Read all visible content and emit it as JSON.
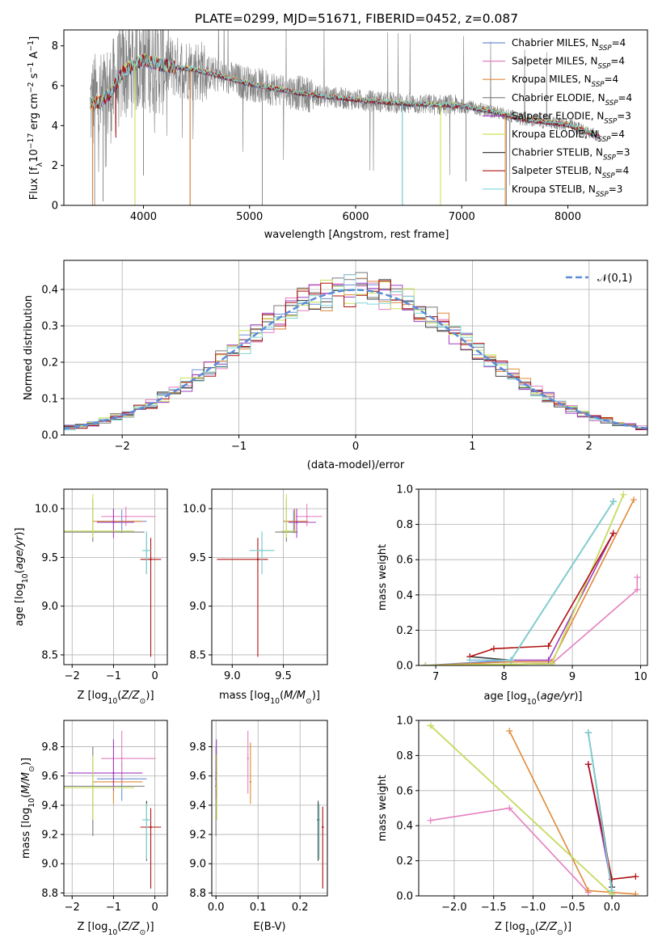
{
  "colors": {
    "chabrier_miles": "#6d8fd6",
    "salpeter_miles": "#e57fbf",
    "kroupa_miles": "#e08a3a",
    "chabrier_elodie": "#7a7a7a",
    "salpeter_elodie": "#9f3fbf",
    "kroupa_elodie": "#c9e35a",
    "chabrier_stelib": "#404040",
    "salpeter_stelib": "#b01010",
    "kroupa_stelib": "#7fd8d8",
    "spectrum": "#808080",
    "gauss": "#5b8bd9",
    "grid": "#b0b0b0"
  },
  "chart_data": [
    {
      "id": "spectrum",
      "type": "line",
      "title": "PLATE=0299, MJD=51671, FIBERID=0452, z=0.087",
      "xlabel": "wavelength [Angstrom, rest frame]",
      "ylabel": "Flux [f_λ10^-17 erg cm^-2 s^-1 A^-1]",
      "xlim": [
        3250,
        8750
      ],
      "ylim": [
        0,
        8.8
      ],
      "xticks": [
        "4000",
        "5000",
        "6000",
        "7000",
        "8000"
      ],
      "yticks": [
        "0",
        "2",
        "4",
        "6",
        "8"
      ],
      "grid": false,
      "legend": "top-right",
      "legend_entries": [
        {
          "label": "Chabrier MILES, N",
          "sub": "SSP",
          "tail": "=4"
        },
        {
          "label": "Salpeter MILES, N",
          "sub": "SSP",
          "tail": "=4"
        },
        {
          "label": "Kroupa MILES, N",
          "sub": "SSP",
          "tail": "=4"
        },
        {
          "label": "Chabrier ELODIE, N",
          "sub": "SSP",
          "tail": "=4"
        },
        {
          "label": "Salpeter ELODIE, N",
          "sub": "SSP",
          "tail": "=3"
        },
        {
          "label": "Kroupa ELODIE, N",
          "sub": "SSP",
          "tail": "=4"
        },
        {
          "label": "Chabrier STELIB, N",
          "sub": "SSP",
          "tail": "=3"
        },
        {
          "label": "Salpeter STELIB, N",
          "sub": "SSP",
          "tail": "=4"
        },
        {
          "label": "Kroupa STELIB, N",
          "sub": "SSP",
          "tail": "=3"
        }
      ],
      "continuum": [
        [
          3500,
          5.1
        ],
        [
          3600,
          5.2
        ],
        [
          3700,
          5.7
        ],
        [
          3800,
          6.7
        ],
        [
          3900,
          7.0
        ],
        [
          4000,
          7.3
        ],
        [
          4200,
          7.0
        ],
        [
          4500,
          6.8
        ],
        [
          5000,
          6.1
        ],
        [
          5500,
          5.6
        ],
        [
          6000,
          5.3
        ],
        [
          6500,
          5.1
        ],
        [
          7000,
          5.0
        ],
        [
          7300,
          4.7
        ],
        [
          7600,
          4.3
        ],
        [
          8000,
          4.05
        ],
        [
          8250,
          3.55
        ],
        [
          8300,
          3.45
        ]
      ]
    },
    {
      "id": "residuals",
      "type": "line",
      "xlabel": "(data-model)/error",
      "ylabel": "Normed distribution",
      "xlim": [
        -2.5,
        2.5
      ],
      "ylim": [
        0,
        0.48
      ],
      "xticks": [
        "−2",
        "−1",
        "0",
        "1",
        "2"
      ],
      "yticks": [
        "0.0",
        "0.1",
        "0.2",
        "0.3",
        "0.4"
      ],
      "grid": true,
      "legend": "top-right",
      "legend_label": "𝒩(0,1)"
    },
    {
      "id": "age_Z",
      "type": "scatter",
      "xlabel": "Z [log10(Z/Z⊙)]",
      "ylabel": "age [log10(age/yr)]",
      "xlim": [
        -2.2,
        0.3
      ],
      "ylim": [
        8.4,
        10.2
      ],
      "xticks": [
        "−2",
        "−1",
        "0"
      ],
      "yticks": [
        "8.5",
        "9.0",
        "9.5",
        "10.0"
      ],
      "grid": true,
      "points": [
        {
          "c": "chabrier_miles",
          "x": -0.8,
          "y": 9.87,
          "ex": [
            -1.4,
            -0.2
          ],
          "ey": [
            9.75,
            9.99
          ]
        },
        {
          "c": "salpeter_miles",
          "x": -0.7,
          "y": 9.92,
          "ex": [
            -1.3,
            0.02
          ],
          "ey": [
            9.82,
            10.02
          ]
        },
        {
          "c": "kroupa_miles",
          "x": -1.0,
          "y": 9.87,
          "ex": [
            -1.5,
            -0.3
          ],
          "ey": [
            9.75,
            10.0
          ]
        },
        {
          "c": "chabrier_elodie",
          "x": -1.5,
          "y": 9.76,
          "ex": [
            -2.25,
            -0.25
          ],
          "ey": [
            9.66,
            10.1
          ]
        },
        {
          "c": "salpeter_elodie",
          "x": -1.0,
          "y": 9.86,
          "ex": [
            -1.4,
            -0.5
          ],
          "ey": [
            9.7,
            10.0
          ]
        },
        {
          "c": "kroupa_elodie",
          "x": -1.5,
          "y": 9.77,
          "ex": [
            -2.25,
            -0.5
          ],
          "ey": [
            9.7,
            10.15
          ]
        },
        {
          "c": "chabrier_stelib",
          "x": -0.2,
          "y": 9.57,
          "ex": [
            -0.3,
            -0.1
          ],
          "ey": [
            9.33,
            9.75
          ]
        },
        {
          "c": "salpeter_stelib",
          "x": -0.1,
          "y": 9.48,
          "ex": [
            -0.35,
            0.15
          ],
          "ey": [
            8.48,
            9.7
          ]
        },
        {
          "c": "kroupa_stelib",
          "x": -0.2,
          "y": 9.57,
          "ex": [
            -0.3,
            -0.1
          ],
          "ey": [
            9.33,
            9.77
          ]
        }
      ]
    },
    {
      "id": "age_mass",
      "type": "scatter",
      "xlabel": "mass [log10(M/M⊙)]",
      "ylabel": "",
      "xlim": [
        8.8,
        9.93
      ],
      "ylim": [
        8.4,
        10.2
      ],
      "xticks": [
        "9.0",
        "9.5"
      ],
      "yticks": [
        "8.5",
        "9.0",
        "9.5",
        "10.0"
      ],
      "grid": true,
      "points": [
        {
          "c": "chabrier_miles",
          "x": 9.6,
          "y": 9.87,
          "ex": [
            9.5,
            9.72
          ],
          "ey": [
            9.75,
            9.99
          ]
        },
        {
          "c": "salpeter_miles",
          "x": 9.73,
          "y": 9.92,
          "ex": [
            9.62,
            9.88
          ],
          "ey": [
            9.82,
            10.05
          ]
        },
        {
          "c": "kroupa_miles",
          "x": 9.61,
          "y": 9.87,
          "ex": [
            9.5,
            9.74
          ],
          "ey": [
            9.75,
            10.0
          ]
        },
        {
          "c": "chabrier_elodie",
          "x": 9.53,
          "y": 9.76,
          "ex": [
            9.42,
            9.64
          ],
          "ey": [
            9.66,
            10.1
          ]
        },
        {
          "c": "salpeter_elodie",
          "x": 9.63,
          "y": 9.86,
          "ex": [
            9.55,
            9.82
          ],
          "ey": [
            9.7,
            10.0
          ]
        },
        {
          "c": "kroupa_elodie",
          "x": 9.53,
          "y": 9.77,
          "ex": [
            9.48,
            9.62
          ],
          "ey": [
            9.7,
            10.15
          ]
        },
        {
          "c": "chabrier_stelib",
          "x": 9.29,
          "y": 9.57,
          "ex": [
            9.17,
            9.41
          ],
          "ey": [
            9.33,
            9.75
          ]
        },
        {
          "c": "salpeter_stelib",
          "x": 9.25,
          "y": 9.48,
          "ex": [
            8.85,
            9.35
          ],
          "ey": [
            8.48,
            9.7
          ]
        },
        {
          "c": "kroupa_stelib",
          "x": 9.29,
          "y": 9.57,
          "ex": [
            9.17,
            9.41
          ],
          "ey": [
            9.33,
            9.77
          ]
        }
      ]
    },
    {
      "id": "weight_age",
      "type": "line",
      "xlabel": "age [log10(age/yr)]",
      "ylabel": "mass weight",
      "xlim": [
        6.75,
        10.1
      ],
      "ylim": [
        0,
        1.0
      ],
      "xticks": [
        "7",
        "8",
        "9",
        "10"
      ],
      "yticks": [
        "0.0",
        "0.2",
        "0.4",
        "0.6",
        "0.8",
        "1.0"
      ],
      "grid": true,
      "series": [
        {
          "c": "chabrier_miles",
          "x": [
            6.85,
            8.1,
            9.6
          ],
          "y": [
            0.0,
            0.03,
            0.93
          ]
        },
        {
          "c": "salpeter_miles",
          "x": [
            6.85,
            8.7,
            9.95,
            9.95
          ],
          "y": [
            0.0,
            0.01,
            0.43,
            0.5
          ]
        },
        {
          "c": "kroupa_miles",
          "x": [
            6.85,
            8.1,
            8.7,
            9.9
          ],
          "y": [
            0.0,
            0.02,
            0.02,
            0.94
          ]
        },
        {
          "c": "chabrier_elodie",
          "x": [
            6.85,
            8.7,
            9.75
          ],
          "y": [
            0.0,
            0.01,
            0.97
          ]
        },
        {
          "c": "salpeter_elodie",
          "x": [
            7.5,
            8.65,
            9.6
          ],
          "y": [
            0.03,
            0.03,
            0.75
          ]
        },
        {
          "c": "kroupa_elodie",
          "x": [
            6.85,
            8.7,
            9.75
          ],
          "y": [
            0.0,
            0.01,
            0.97
          ]
        },
        {
          "c": "chabrier_stelib",
          "x": [
            7.5,
            8.1,
            9.6
          ],
          "y": [
            0.05,
            0.03,
            0.93
          ]
        },
        {
          "c": "salpeter_stelib",
          "x": [
            7.5,
            7.85,
            8.65,
            9.6
          ],
          "y": [
            0.05,
            0.095,
            0.11,
            0.75
          ]
        },
        {
          "c": "kroupa_stelib",
          "x": [
            7.5,
            8.1,
            9.6
          ],
          "y": [
            0.03,
            0.03,
            0.93
          ]
        }
      ]
    },
    {
      "id": "mass_Z",
      "type": "scatter",
      "xlabel": "Z [log10(Z/Z⊙)]",
      "ylabel": "mass [log10(M/M⊙)]",
      "xlim": [
        -2.2,
        0.3
      ],
      "ylim": [
        8.78,
        9.98
      ],
      "xticks": [
        "−2",
        "−1",
        "0"
      ],
      "yticks": [
        "8.8",
        "9.0",
        "9.2",
        "9.4",
        "9.6",
        "9.8"
      ],
      "grid": true,
      "points": [
        {
          "c": "chabrier_miles",
          "x": -0.8,
          "y": 9.58,
          "ex": [
            -1.4,
            -0.2
          ],
          "ey": [
            9.43,
            9.7
          ]
        },
        {
          "c": "salpeter_miles",
          "x": -0.8,
          "y": 9.72,
          "ex": [
            -1.3,
            0.02
          ],
          "ey": [
            9.55,
            9.91
          ]
        },
        {
          "c": "kroupa_miles",
          "x": -1.0,
          "y": 9.56,
          "ex": [
            -1.5,
            -0.3
          ],
          "ey": [
            9.41,
            9.74
          ]
        },
        {
          "c": "chabrier_elodie",
          "x": -1.5,
          "y": 9.53,
          "ex": [
            -2.25,
            -0.25
          ],
          "ey": [
            9.19,
            9.8
          ]
        },
        {
          "c": "salpeter_elodie",
          "x": -1.0,
          "y": 9.62,
          "ex": [
            -2.1,
            -0.3
          ],
          "ey": [
            9.5,
            9.85
          ]
        },
        {
          "c": "kroupa_elodie",
          "x": -1.5,
          "y": 9.52,
          "ex": [
            -2.25,
            -0.5
          ],
          "ey": [
            9.3,
            9.74
          ]
        },
        {
          "c": "chabrier_stelib",
          "x": -0.2,
          "y": 9.3,
          "ex": [
            -0.3,
            -0.1
          ],
          "ey": [
            9.02,
            9.43
          ]
        },
        {
          "c": "salpeter_stelib",
          "x": -0.1,
          "y": 9.25,
          "ex": [
            -0.35,
            0.15
          ],
          "ey": [
            8.83,
            9.38
          ]
        },
        {
          "c": "kroupa_stelib",
          "x": -0.2,
          "y": 9.3,
          "ex": [
            -0.3,
            -0.1
          ],
          "ey": [
            9.03,
            9.41
          ]
        }
      ]
    },
    {
      "id": "mass_ebv",
      "type": "scatter",
      "xlabel": "E(B-V)",
      "ylabel": "",
      "xlim": [
        -0.01,
        0.265
      ],
      "ylim": [
        8.78,
        9.98
      ],
      "xticks": [
        "0.0",
        "0.1",
        "0.2"
      ],
      "yticks": [
        "8.8",
        "9.0",
        "9.2",
        "9.4",
        "9.6",
        "9.8"
      ],
      "grid": true,
      "points": [
        {
          "c": "chabrier_miles",
          "x": 0.0,
          "y": 9.58,
          "ey": [
            9.43,
            9.7
          ]
        },
        {
          "c": "salpeter_miles",
          "x": 0.076,
          "y": 9.72,
          "ey": [
            9.48,
            9.91
          ]
        },
        {
          "c": "kroupa_miles",
          "x": 0.082,
          "y": 9.56,
          "ey": [
            9.41,
            9.83
          ]
        },
        {
          "c": "chabrier_elodie",
          "x": 0.0,
          "y": 9.53,
          "ey": [
            9.19,
            9.8
          ]
        },
        {
          "c": "salpeter_elodie",
          "x": 0.001,
          "y": 9.62,
          "ey": [
            9.45,
            9.85
          ]
        },
        {
          "c": "kroupa_elodie",
          "x": 0.002,
          "y": 9.52,
          "ey": [
            9.3,
            9.75
          ]
        },
        {
          "c": "chabrier_stelib",
          "x": 0.243,
          "y": 9.3,
          "ey": [
            9.02,
            9.43
          ]
        },
        {
          "c": "salpeter_stelib",
          "x": 0.254,
          "y": 9.25,
          "ey": [
            8.83,
            9.39
          ]
        },
        {
          "c": "kroupa_stelib",
          "x": 0.246,
          "y": 9.3,
          "ey": [
            9.03,
            9.41
          ]
        }
      ]
    },
    {
      "id": "weight_Z",
      "type": "line",
      "xlabel": "Z [log10(Z/Z⊙)]",
      "ylabel": "mass weight",
      "xlim": [
        -2.45,
        0.45
      ],
      "ylim": [
        0,
        1.0
      ],
      "xticks": [
        "−2.0",
        "−1.5",
        "−1.0",
        "−0.5",
        "0.0"
      ],
      "yticks": [
        "0.0",
        "0.2",
        "0.4",
        "0.6",
        "0.8",
        "1.0"
      ],
      "grid": true,
      "series": [
        {
          "c": "chabrier_miles",
          "x": [
            -0.3,
            0.0
          ],
          "y": [
            0.93,
            0.02
          ]
        },
        {
          "c": "salpeter_miles",
          "x": [
            -2.3,
            -1.3,
            -0.3
          ],
          "y": [
            0.43,
            0.5,
            0.02
          ]
        },
        {
          "c": "kroupa_miles",
          "x": [
            -1.3,
            -0.3,
            0.0,
            0.3
          ],
          "y": [
            0.94,
            0.03,
            0.02,
            0.01
          ]
        },
        {
          "c": "chabrier_elodie",
          "x": [
            -2.3,
            0.0
          ],
          "y": [
            0.97,
            0.01
          ]
        },
        {
          "c": "salpeter_elodie",
          "x": [
            -0.3,
            0.0
          ],
          "y": [
            0.75,
            0.05
          ]
        },
        {
          "c": "kroupa_elodie",
          "x": [
            -2.3,
            0.0
          ],
          "y": [
            0.97,
            0.01
          ]
        },
        {
          "c": "chabrier_stelib",
          "x": [
            -0.3,
            0.0
          ],
          "y": [
            0.93,
            0.05
          ]
        },
        {
          "c": "salpeter_stelib",
          "x": [
            -0.3,
            0.0,
            0.3
          ],
          "y": [
            0.75,
            0.095,
            0.11
          ]
        },
        {
          "c": "kroupa_stelib",
          "x": [
            -0.3,
            0.0
          ],
          "y": [
            0.93,
            0.03
          ]
        }
      ]
    }
  ]
}
